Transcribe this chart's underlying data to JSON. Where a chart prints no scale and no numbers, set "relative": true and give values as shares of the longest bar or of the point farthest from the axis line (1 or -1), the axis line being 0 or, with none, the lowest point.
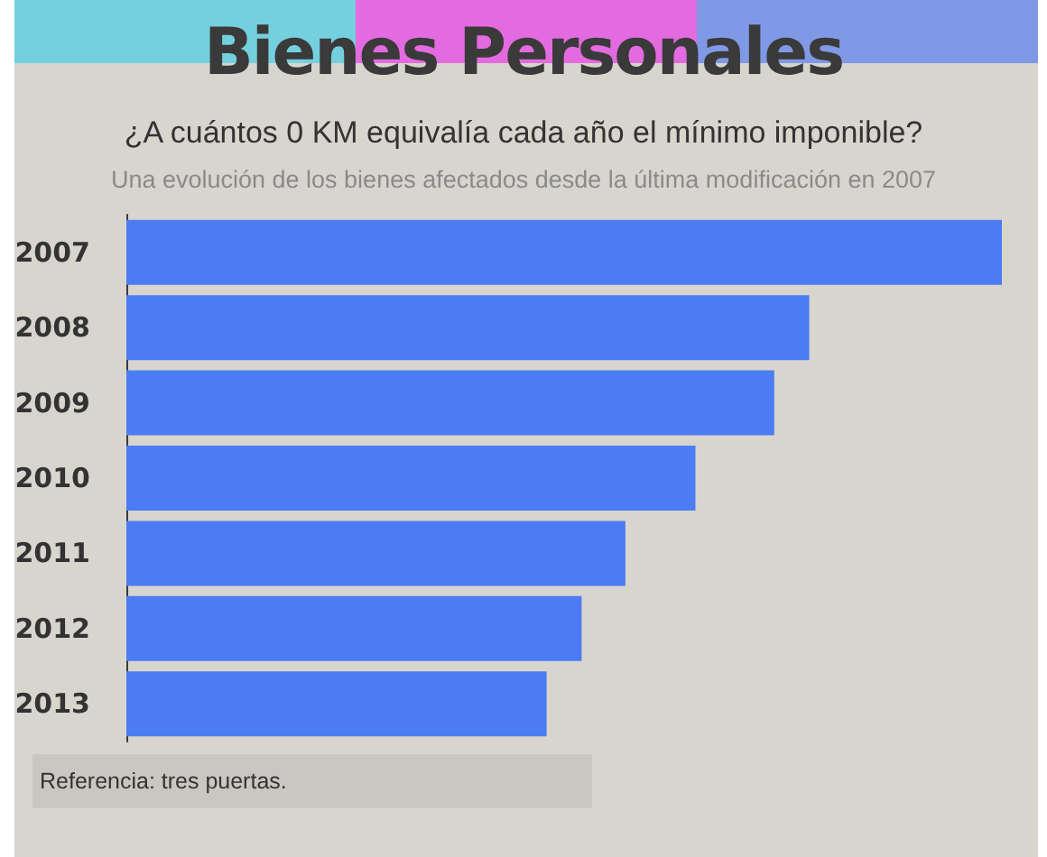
{
  "chart_data": {
    "type": "bar",
    "orientation": "horizontal",
    "relative": true,
    "title": "Bienes Personales",
    "subtitle": "¿A cuántos 0 KM equivalía cada año el mínimo imponible?",
    "categories": [
      "2007",
      "2008",
      "2009",
      "2010",
      "2011",
      "2012",
      "2013"
    ],
    "values": [
      1,
      0.78,
      0.74,
      0.65,
      0.57,
      0.52,
      0.48
    ],
    "color": "#4b7cf3",
    "annotations": [
      "Una evolución de los bienes afectados desde la última modificación en 2007",
      "Referencia: tres puertas."
    ]
  }
}
